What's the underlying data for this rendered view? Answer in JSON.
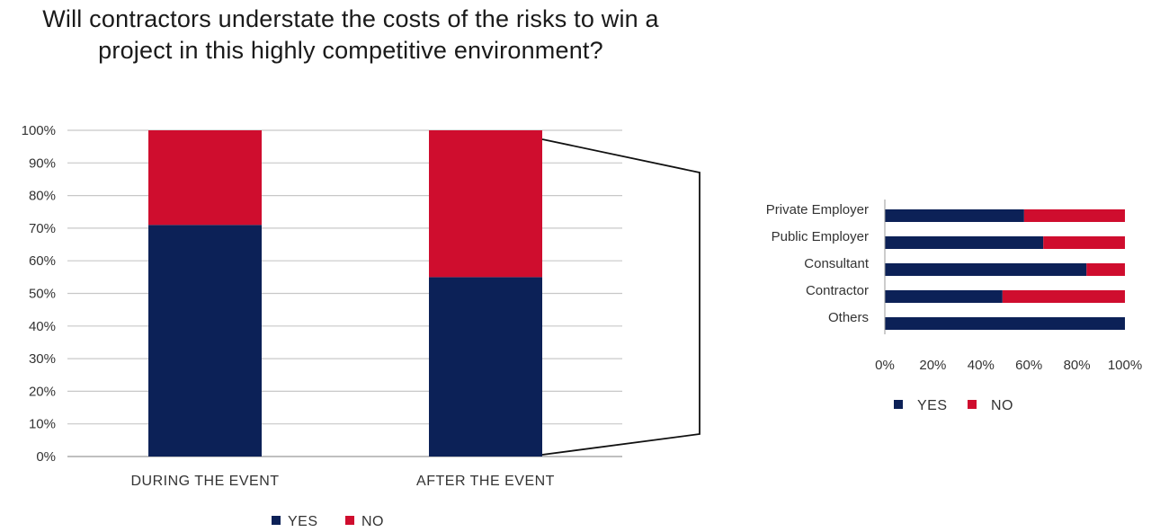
{
  "colors": {
    "yes": "#0c2157",
    "no": "#cf0d2e",
    "grid": "#c8c8c8",
    "axis": "#999999"
  },
  "chart_data": [
    {
      "type": "bar",
      "stacked": true,
      "title": "Will contractors understate the costs of the risks to win a project in this highly competitive environment?",
      "categories": [
        "DURING THE EVENT",
        "AFTER THE EVENT"
      ],
      "series": [
        {
          "name": "YES",
          "values": [
            71,
            55
          ]
        },
        {
          "name": "NO",
          "values": [
            29,
            45
          ]
        }
      ],
      "ylim": [
        0,
        100
      ],
      "yticks": [
        "0%",
        "10%",
        "20%",
        "30%",
        "40%",
        "50%",
        "60%",
        "70%",
        "80%",
        "90%",
        "100%"
      ],
      "grid": true,
      "legend": "bottom"
    },
    {
      "type": "bar",
      "orientation": "horizontal",
      "stacked": true,
      "categories": [
        "Private Employer",
        "Public Employer",
        "Consultant",
        "Contractor",
        "Others"
      ],
      "series": [
        {
          "name": "YES",
          "values": [
            58,
            66,
            84,
            49,
            100
          ]
        },
        {
          "name": "NO",
          "values": [
            42,
            34,
            16,
            51,
            0
          ]
        }
      ],
      "xlim": [
        0,
        100
      ],
      "xticks": [
        "0%",
        "20%",
        "40%",
        "60%",
        "80%",
        "100%"
      ],
      "grid": false,
      "legend": "bottom"
    }
  ]
}
